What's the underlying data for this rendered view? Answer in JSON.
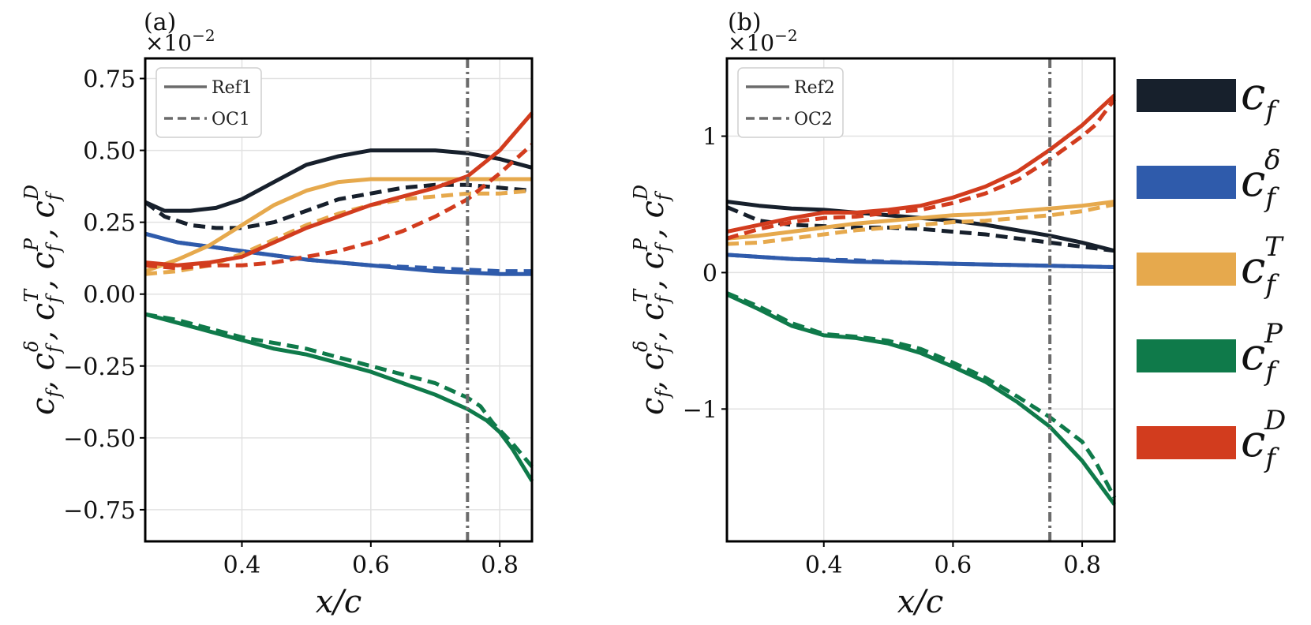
{
  "chart_data": [
    {
      "panel": "(a)",
      "type": "line",
      "multiplier": "×10",
      "multiplier_exp": "−2",
      "xlabel": "x/c",
      "ylabel": "c_f, c_f^δ, c_f^T, c_f^P, c_f^D",
      "xlim": [
        0.25,
        0.85
      ],
      "ylim": [
        -0.86,
        0.82
      ],
      "xticks": [
        0.4,
        0.6,
        0.8
      ],
      "xtick_labels": [
        "0.4",
        "0.6",
        "0.8"
      ],
      "yticks": [
        0.75,
        0.5,
        0.25,
        0.0,
        -0.25,
        -0.5,
        -0.75
      ],
      "ytick_labels": [
        "0.75",
        "0.50",
        "0.25",
        "0.00",
        "−0.25",
        "−0.50",
        "−0.75"
      ],
      "vline_x": 0.75,
      "legend": [
        {
          "label": "Ref1",
          "dash": "solid"
        },
        {
          "label": "OC1",
          "dash": "dashed"
        }
      ],
      "series": [
        {
          "name": "c_f Ref1",
          "component": "cf",
          "dash": "solid",
          "x": [
            0.25,
            0.28,
            0.32,
            0.36,
            0.4,
            0.45,
            0.5,
            0.55,
            0.6,
            0.65,
            0.7,
            0.75,
            0.8,
            0.85
          ],
          "y": [
            0.32,
            0.29,
            0.29,
            0.3,
            0.33,
            0.39,
            0.45,
            0.48,
            0.5,
            0.5,
            0.5,
            0.49,
            0.47,
            0.44
          ]
        },
        {
          "name": "c_f OC1",
          "component": "cf",
          "dash": "dashed",
          "x": [
            0.25,
            0.28,
            0.32,
            0.36,
            0.4,
            0.45,
            0.5,
            0.55,
            0.6,
            0.65,
            0.7,
            0.75,
            0.8,
            0.85
          ],
          "y": [
            0.32,
            0.27,
            0.24,
            0.23,
            0.23,
            0.25,
            0.29,
            0.33,
            0.35,
            0.37,
            0.38,
            0.38,
            0.37,
            0.36
          ]
        },
        {
          "name": "c_f^δ Ref1",
          "component": "cfd",
          "dash": "solid",
          "x": [
            0.25,
            0.3,
            0.4,
            0.5,
            0.6,
            0.7,
            0.8,
            0.85
          ],
          "y": [
            0.21,
            0.18,
            0.15,
            0.12,
            0.1,
            0.08,
            0.07,
            0.07
          ]
        },
        {
          "name": "c_f^δ OC1",
          "component": "cfd",
          "dash": "dashed",
          "x": [
            0.25,
            0.3,
            0.4,
            0.5,
            0.6,
            0.7,
            0.8,
            0.85
          ],
          "y": [
            0.21,
            0.18,
            0.15,
            0.12,
            0.1,
            0.09,
            0.08,
            0.08
          ]
        },
        {
          "name": "c_f^T Ref1",
          "component": "cfT",
          "dash": "solid",
          "x": [
            0.25,
            0.3,
            0.35,
            0.4,
            0.45,
            0.5,
            0.55,
            0.6,
            0.65,
            0.7,
            0.75,
            0.8,
            0.85
          ],
          "y": [
            0.08,
            0.12,
            0.17,
            0.24,
            0.31,
            0.36,
            0.39,
            0.4,
            0.4,
            0.4,
            0.4,
            0.4,
            0.4
          ]
        },
        {
          "name": "c_f^T OC1",
          "component": "cfT",
          "dash": "dashed",
          "x": [
            0.25,
            0.3,
            0.35,
            0.4,
            0.45,
            0.5,
            0.55,
            0.6,
            0.65,
            0.7,
            0.75,
            0.8,
            0.85
          ],
          "y": [
            0.07,
            0.08,
            0.1,
            0.14,
            0.19,
            0.24,
            0.28,
            0.31,
            0.33,
            0.34,
            0.35,
            0.35,
            0.36
          ]
        },
        {
          "name": "c_f^P Ref1",
          "component": "cfP",
          "dash": "solid",
          "x": [
            0.25,
            0.3,
            0.35,
            0.4,
            0.45,
            0.5,
            0.55,
            0.6,
            0.65,
            0.7,
            0.75,
            0.78,
            0.8,
            0.82,
            0.85
          ],
          "y": [
            -0.07,
            -0.1,
            -0.13,
            -0.16,
            -0.19,
            -0.21,
            -0.24,
            -0.27,
            -0.31,
            -0.35,
            -0.4,
            -0.44,
            -0.48,
            -0.54,
            -0.65
          ]
        },
        {
          "name": "c_f^P OC1",
          "component": "cfP",
          "dash": "dashed",
          "x": [
            0.25,
            0.3,
            0.35,
            0.4,
            0.45,
            0.5,
            0.55,
            0.6,
            0.65,
            0.7,
            0.75,
            0.77,
            0.79,
            0.82,
            0.85
          ],
          "y": [
            -0.07,
            -0.09,
            -0.12,
            -0.15,
            -0.17,
            -0.19,
            -0.22,
            -0.25,
            -0.28,
            -0.31,
            -0.36,
            -0.39,
            -0.45,
            -0.52,
            -0.6
          ]
        },
        {
          "name": "c_f^D Ref1",
          "component": "cfD",
          "dash": "solid",
          "x": [
            0.25,
            0.3,
            0.35,
            0.4,
            0.45,
            0.5,
            0.55,
            0.6,
            0.65,
            0.7,
            0.75,
            0.8,
            0.85
          ],
          "y": [
            0.11,
            0.1,
            0.11,
            0.13,
            0.18,
            0.23,
            0.27,
            0.31,
            0.34,
            0.37,
            0.41,
            0.5,
            0.63
          ]
        },
        {
          "name": "c_f^D OC1",
          "component": "cfD",
          "dash": "dashed",
          "x": [
            0.25,
            0.3,
            0.35,
            0.4,
            0.45,
            0.5,
            0.55,
            0.6,
            0.65,
            0.7,
            0.75,
            0.8,
            0.85
          ],
          "y": [
            0.1,
            0.09,
            0.1,
            0.1,
            0.11,
            0.13,
            0.15,
            0.18,
            0.22,
            0.27,
            0.33,
            0.42,
            0.52
          ]
        }
      ]
    },
    {
      "panel": "(b)",
      "type": "line",
      "multiplier": "×10",
      "multiplier_exp": "−2",
      "xlabel": "x/c",
      "ylabel": "c_f, c_f^δ, c_f^T, c_f^P, c_f^D",
      "xlim": [
        0.25,
        0.85
      ],
      "ylim": [
        -1.97,
        1.57
      ],
      "xticks": [
        0.4,
        0.6,
        0.8
      ],
      "xtick_labels": [
        "0.4",
        "0.6",
        "0.8"
      ],
      "yticks": [
        1,
        0,
        -1
      ],
      "ytick_labels": [
        "1",
        "0",
        "−1"
      ],
      "vline_x": 0.75,
      "legend": [
        {
          "label": "Ref2",
          "dash": "solid"
        },
        {
          "label": "OC2",
          "dash": "dashed"
        }
      ],
      "series": [
        {
          "name": "c_f Ref2",
          "component": "cf",
          "dash": "solid",
          "x": [
            0.25,
            0.3,
            0.35,
            0.4,
            0.45,
            0.5,
            0.55,
            0.6,
            0.65,
            0.7,
            0.75,
            0.8,
            0.85
          ],
          "y": [
            0.52,
            0.49,
            0.47,
            0.46,
            0.44,
            0.42,
            0.4,
            0.38,
            0.35,
            0.31,
            0.27,
            0.22,
            0.16
          ]
        },
        {
          "name": "c_f OC2",
          "component": "cf",
          "dash": "dashed",
          "x": [
            0.25,
            0.3,
            0.35,
            0.4,
            0.45,
            0.5,
            0.55,
            0.6,
            0.65,
            0.7,
            0.75,
            0.8,
            0.85
          ],
          "y": [
            0.48,
            0.38,
            0.35,
            0.34,
            0.33,
            0.33,
            0.32,
            0.3,
            0.28,
            0.25,
            0.22,
            0.19,
            0.16
          ]
        },
        {
          "name": "c_f^δ Ref2",
          "component": "cfd",
          "dash": "solid",
          "x": [
            0.25,
            0.35,
            0.45,
            0.55,
            0.65,
            0.75,
            0.85
          ],
          "y": [
            0.13,
            0.1,
            0.08,
            0.07,
            0.06,
            0.05,
            0.04
          ]
        },
        {
          "name": "c_f^δ OC2",
          "component": "cfd",
          "dash": "dashed",
          "x": [
            0.25,
            0.35,
            0.45,
            0.55,
            0.65,
            0.75,
            0.85
          ],
          "y": [
            0.13,
            0.1,
            0.09,
            0.07,
            0.06,
            0.05,
            0.04
          ]
        },
        {
          "name": "c_f^T Ref2",
          "component": "cfT",
          "dash": "solid",
          "x": [
            0.25,
            0.3,
            0.35,
            0.4,
            0.45,
            0.5,
            0.55,
            0.6,
            0.65,
            0.7,
            0.75,
            0.8,
            0.85
          ],
          "y": [
            0.25,
            0.27,
            0.3,
            0.33,
            0.36,
            0.38,
            0.4,
            0.42,
            0.43,
            0.45,
            0.47,
            0.49,
            0.52
          ]
        },
        {
          "name": "c_f^T OC2",
          "component": "cfT",
          "dash": "dashed",
          "x": [
            0.25,
            0.3,
            0.35,
            0.4,
            0.45,
            0.5,
            0.55,
            0.6,
            0.65,
            0.7,
            0.75,
            0.8,
            0.85
          ],
          "y": [
            0.21,
            0.22,
            0.25,
            0.28,
            0.31,
            0.33,
            0.35,
            0.37,
            0.38,
            0.4,
            0.42,
            0.45,
            0.5
          ]
        },
        {
          "name": "c_f^P Ref2",
          "component": "cfP",
          "dash": "solid",
          "x": [
            0.25,
            0.3,
            0.35,
            0.4,
            0.45,
            0.5,
            0.55,
            0.6,
            0.65,
            0.7,
            0.75,
            0.8,
            0.85
          ],
          "y": [
            -0.16,
            -0.27,
            -0.39,
            -0.46,
            -0.48,
            -0.52,
            -0.59,
            -0.69,
            -0.8,
            -0.95,
            -1.13,
            -1.38,
            -1.7
          ]
        },
        {
          "name": "c_f^P OC2",
          "component": "cfP",
          "dash": "dashed",
          "x": [
            0.25,
            0.3,
            0.35,
            0.4,
            0.45,
            0.5,
            0.55,
            0.6,
            0.65,
            0.7,
            0.75,
            0.8,
            0.82,
            0.85
          ],
          "y": [
            -0.15,
            -0.25,
            -0.37,
            -0.45,
            -0.47,
            -0.5,
            -0.56,
            -0.66,
            -0.77,
            -0.91,
            -1.06,
            -1.24,
            -1.38,
            -1.65
          ]
        },
        {
          "name": "c_f^D Ref2",
          "component": "cfD",
          "dash": "solid",
          "x": [
            0.25,
            0.3,
            0.35,
            0.4,
            0.45,
            0.5,
            0.55,
            0.6,
            0.65,
            0.7,
            0.75,
            0.8,
            0.85
          ],
          "y": [
            0.3,
            0.35,
            0.4,
            0.44,
            0.44,
            0.46,
            0.49,
            0.55,
            0.63,
            0.74,
            0.9,
            1.08,
            1.3
          ]
        },
        {
          "name": "c_f^D OC2",
          "component": "cfD",
          "dash": "dashed",
          "x": [
            0.25,
            0.3,
            0.35,
            0.4,
            0.45,
            0.5,
            0.55,
            0.6,
            0.65,
            0.7,
            0.75,
            0.8,
            0.82,
            0.85
          ],
          "y": [
            0.25,
            0.32,
            0.37,
            0.4,
            0.41,
            0.44,
            0.46,
            0.51,
            0.58,
            0.68,
            0.83,
            1.0,
            1.08,
            1.27
          ]
        }
      ]
    }
  ],
  "colors": {
    "cf": "#17202c",
    "cfd": "#2f5bab",
    "cfT": "#e6a94d",
    "cfP": "#0f7a4a",
    "cfD": "#d23c1e",
    "vline": "#6b6b6b",
    "grid": "#e2e2e2"
  },
  "key": [
    {
      "component": "cf",
      "base": "c",
      "sub": "f",
      "sup": ""
    },
    {
      "component": "cfd",
      "base": "c",
      "sub": "f",
      "sup": "δ"
    },
    {
      "component": "cfT",
      "base": "c",
      "sub": "f",
      "sup": "T"
    },
    {
      "component": "cfP",
      "base": "c",
      "sub": "f",
      "sup": "P"
    },
    {
      "component": "cfD",
      "base": "c",
      "sub": "f",
      "sup": "D"
    }
  ]
}
